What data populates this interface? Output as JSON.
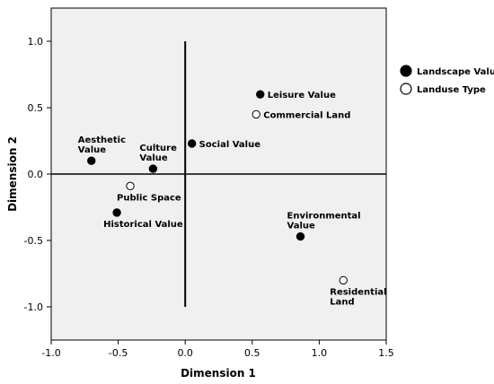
{
  "chart_data": {
    "type": "scatter",
    "title": "",
    "xlabel": "Dimension 1",
    "ylabel": "Dimension 2",
    "xlim": [
      -1.0,
      1.5
    ],
    "ylim": [
      -1.25,
      1.25
    ],
    "x_ticks": [
      "-1.0",
      "-0.5",
      "0.0",
      "0.5",
      "1.0",
      "1.5"
    ],
    "y_ticks": [
      "1.0",
      "0.5",
      "0.0",
      "-0.5",
      "-1.0"
    ],
    "grid": false,
    "legend_position": "right",
    "series": [
      {
        "name": "Landscape Value",
        "marker": "filled-circle",
        "color": "#000000",
        "points": [
          {
            "label": [
              "Leisure Value"
            ],
            "x": 0.56,
            "y": 0.6,
            "label_anchor": "right"
          },
          {
            "label": [
              "Social Value"
            ],
            "x": 0.05,
            "y": 0.23,
            "label_anchor": "right"
          },
          {
            "label": [
              "Culture",
              "Value"
            ],
            "x": -0.24,
            "y": 0.04,
            "label_anchor": "above"
          },
          {
            "label": [
              "Aesthetic",
              "Value"
            ],
            "x": -0.7,
            "y": 0.1,
            "label_anchor": "above"
          },
          {
            "label": [
              "Historical Value"
            ],
            "x": -0.51,
            "y": -0.29,
            "label_anchor": "below"
          },
          {
            "label": [
              "Environmental",
              "Value"
            ],
            "x": 0.86,
            "y": -0.47,
            "label_anchor": "above"
          }
        ]
      },
      {
        "name": "Landuse Type",
        "marker": "open-circle",
        "color": "#000000",
        "points": [
          {
            "label": [
              "Commercial Land"
            ],
            "x": 0.53,
            "y": 0.45,
            "label_anchor": "right"
          },
          {
            "label": [
              "Public Space"
            ],
            "x": -0.41,
            "y": -0.09,
            "label_anchor": "below"
          },
          {
            "label": [
              "Residential",
              "Land"
            ],
            "x": 1.18,
            "y": -0.8,
            "label_anchor": "below"
          }
        ]
      }
    ],
    "reference_lines": {
      "vertical_x": 0.0,
      "vertical_range": [
        -1.0,
        1.0
      ],
      "horizontal_y": 0.0
    }
  }
}
